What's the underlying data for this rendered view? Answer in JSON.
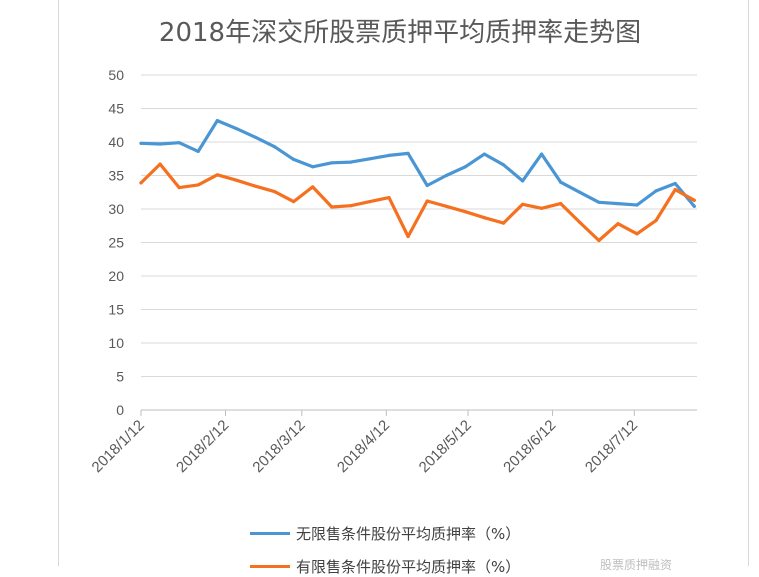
{
  "chart_data": {
    "type": "line",
    "title": "2018年深交所股票质押平均质押率走势图",
    "xlabel": "",
    "ylabel": "",
    "ylim": [
      0,
      50
    ],
    "yticks": [
      0,
      5,
      10,
      15,
      20,
      25,
      30,
      35,
      40,
      45,
      50
    ],
    "x_tick_labels": [
      "2018/1/12",
      "2018/2/12",
      "2018/3/12",
      "2018/4/12",
      "2018/5/12",
      "2018/6/12",
      "2018/7/12"
    ],
    "x_tick_positions": [
      0,
      31,
      59,
      90,
      120,
      151,
      181
    ],
    "x_range": [
      0,
      204
    ],
    "grid": "horizontal",
    "legend_position": "bottom",
    "series": [
      {
        "name": "无限售条件股份平均质押率（%）",
        "color": "#4a96d4",
        "x": [
          0,
          7,
          14,
          21,
          28,
          35,
          42,
          49,
          56,
          63,
          70,
          77,
          84,
          91,
          98,
          105,
          112,
          119,
          126,
          133,
          140,
          147,
          154,
          161,
          168,
          175,
          182,
          189,
          196,
          203
        ],
        "values": [
          39.8,
          39.7,
          39.9,
          38.6,
          43.2,
          42.0,
          40.7,
          39.3,
          37.4,
          36.3,
          36.9,
          37.0,
          37.5,
          38.0,
          38.3,
          33.5,
          35.0,
          36.3,
          38.2,
          36.6,
          34.2,
          38.2,
          34.0,
          32.5,
          31.0,
          30.8,
          30.6,
          32.7,
          33.8,
          30.4
        ]
      },
      {
        "name": "有限售条件股份平均质押率（%）",
        "color": "#f5701f",
        "x": [
          0,
          7,
          14,
          21,
          28,
          35,
          42,
          49,
          56,
          63,
          70,
          77,
          84,
          91,
          98,
          105,
          112,
          119,
          126,
          133,
          140,
          147,
          154,
          161,
          168,
          175,
          182,
          189,
          196,
          203
        ],
        "values": [
          33.9,
          36.7,
          33.2,
          33.6,
          35.1,
          34.3,
          33.4,
          32.6,
          31.1,
          33.3,
          30.3,
          30.5,
          31.1,
          31.7,
          25.9,
          31.2,
          30.4,
          29.6,
          28.7,
          27.9,
          30.7,
          30.1,
          30.8,
          28.0,
          25.3,
          27.8,
          26.3,
          28.3,
          32.9,
          31.3
        ]
      }
    ]
  },
  "legend": {
    "item1": "无限售条件股份平均质押率（%）",
    "item2": "有限售条件股份平均质押率（%）"
  },
  "watermark": "股票质押融资"
}
